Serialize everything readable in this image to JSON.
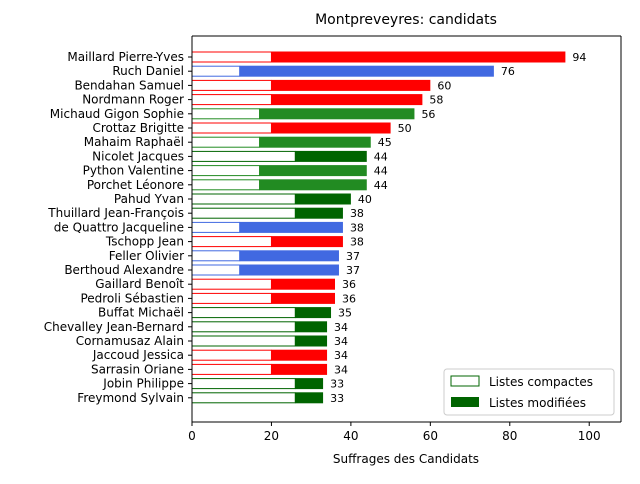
{
  "chart_data": {
    "type": "bar",
    "orientation": "horizontal",
    "stacked": true,
    "title": "Montpreveyres: candidats",
    "xlabel": "Suffrages des Candidats",
    "ylabel": "",
    "xlim": [
      0,
      108
    ],
    "xticks": [
      0,
      20,
      40,
      60,
      80,
      100
    ],
    "grid": false,
    "legend_position": "lower-right",
    "legend": [
      {
        "label": "Listes compactes",
        "style": "outline",
        "color": "#006400"
      },
      {
        "label": "Listes modifiées",
        "style": "filled",
        "color": "#006400"
      }
    ],
    "categories": [
      "Maillard Pierre-Yves",
      "Ruch Daniel",
      "Bendahan Samuel",
      "Nordmann Roger",
      "Michaud Gigon Sophie",
      "Crottaz Brigitte",
      "Mahaim Raphaël",
      "Nicolet Jacques",
      "Python Valentine",
      "Porchet Léonore",
      "Pahud Yvan",
      "Thuillard Jean-François",
      "de Quattro Jacqueline",
      "Tschopp Jean",
      "Feller Olivier",
      "Berthoud Alexandre",
      "Gaillard Benoît",
      "Pedroli Sébastien",
      "Buffat Michaël",
      "Chevalley Jean-Bernard",
      "Cornamusaz Alain",
      "Jaccoud Jessica",
      "Sarrasin Oriane",
      "Jobin Philippe",
      "Freymond Sylvain"
    ],
    "series": [
      {
        "name": "Listes compactes",
        "values": [
          20,
          12,
          20,
          20,
          17,
          20,
          17,
          26,
          17,
          17,
          26,
          26,
          12,
          20,
          12,
          12,
          20,
          20,
          26,
          26,
          26,
          20,
          20,
          26,
          26
        ]
      },
      {
        "name": "Listes modifiées",
        "values": [
          74,
          64,
          40,
          38,
          39,
          30,
          28,
          18,
          27,
          27,
          14,
          12,
          26,
          18,
          25,
          25,
          16,
          16,
          9,
          8,
          8,
          14,
          14,
          7,
          7
        ]
      }
    ],
    "totals": [
      94,
      76,
      60,
      58,
      56,
      50,
      45,
      44,
      44,
      44,
      40,
      38,
      38,
      38,
      37,
      37,
      36,
      36,
      35,
      34,
      34,
      34,
      34,
      33,
      33
    ],
    "bar_colors": [
      "#ff0000",
      "#4169e1",
      "#ff0000",
      "#ff0000",
      "#228b22",
      "#ff0000",
      "#228b22",
      "#006400",
      "#228b22",
      "#228b22",
      "#006400",
      "#006400",
      "#4169e1",
      "#ff0000",
      "#4169e1",
      "#4169e1",
      "#ff0000",
      "#ff0000",
      "#006400",
      "#006400",
      "#006400",
      "#ff0000",
      "#ff0000",
      "#006400",
      "#006400"
    ]
  }
}
